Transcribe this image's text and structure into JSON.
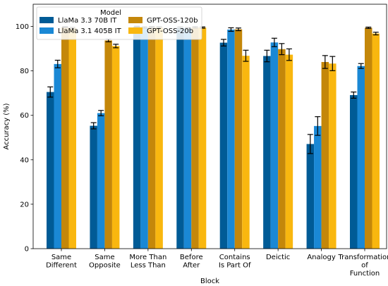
{
  "chart_data": {
    "type": "bar",
    "xlabel": "Block",
    "ylabel": "Accuracy (%)",
    "ylim": [
      0,
      110
    ],
    "yticks": [
      0,
      20,
      40,
      60,
      80,
      100
    ],
    "grid": false,
    "legend": {
      "title": "Model",
      "placement": "top-left",
      "columns": 2
    },
    "categories": [
      [
        "Same",
        "Different"
      ],
      [
        "Same",
        "Opposite"
      ],
      [
        "More Than",
        "Less Than"
      ],
      [
        "Before",
        "After"
      ],
      [
        "Contains",
        "Is Part Of"
      ],
      [
        "Deictic"
      ],
      [
        "Analogy"
      ],
      [
        "Transformation",
        "of",
        "Function"
      ]
    ],
    "series": [
      {
        "name": "LlaMa 3.3 70B IT",
        "color": "#005b96",
        "values": [
          70.5,
          55.3,
          99.9,
          99.4,
          92.7,
          86.7,
          47.1,
          69.1
        ],
        "errors": [
          2.3,
          1.4,
          0.2,
          0.4,
          1.5,
          2.6,
          4.3,
          1.4
        ]
      },
      {
        "name": "LlaMa 3.1 405B IT",
        "color": "#1a88d5",
        "values": [
          83.1,
          61.0,
          99.5,
          99.1,
          98.6,
          92.8,
          55.2,
          82.2
        ],
        "errors": [
          1.7,
          1.2,
          0.3,
          0.4,
          0.8,
          1.9,
          4.2,
          1.1
        ]
      },
      {
        "name": "GPT-OSS-120b",
        "color": "#c4870a",
        "values": [
          99.7,
          93.7,
          99.7,
          99.6,
          98.7,
          89.8,
          84.0,
          99.4
        ],
        "errors": [
          0.2,
          0.6,
          0.3,
          0.3,
          0.6,
          2.5,
          2.9,
          0.3
        ]
      },
      {
        "name": "GPT-OSS-20b",
        "color": "#f9b70f",
        "values": [
          99.3,
          91.2,
          99.6,
          99.5,
          86.8,
          87.3,
          83.3,
          96.8
        ],
        "errors": [
          0.3,
          0.8,
          0.3,
          0.3,
          2.5,
          2.6,
          3.2,
          0.6
        ]
      }
    ]
  }
}
